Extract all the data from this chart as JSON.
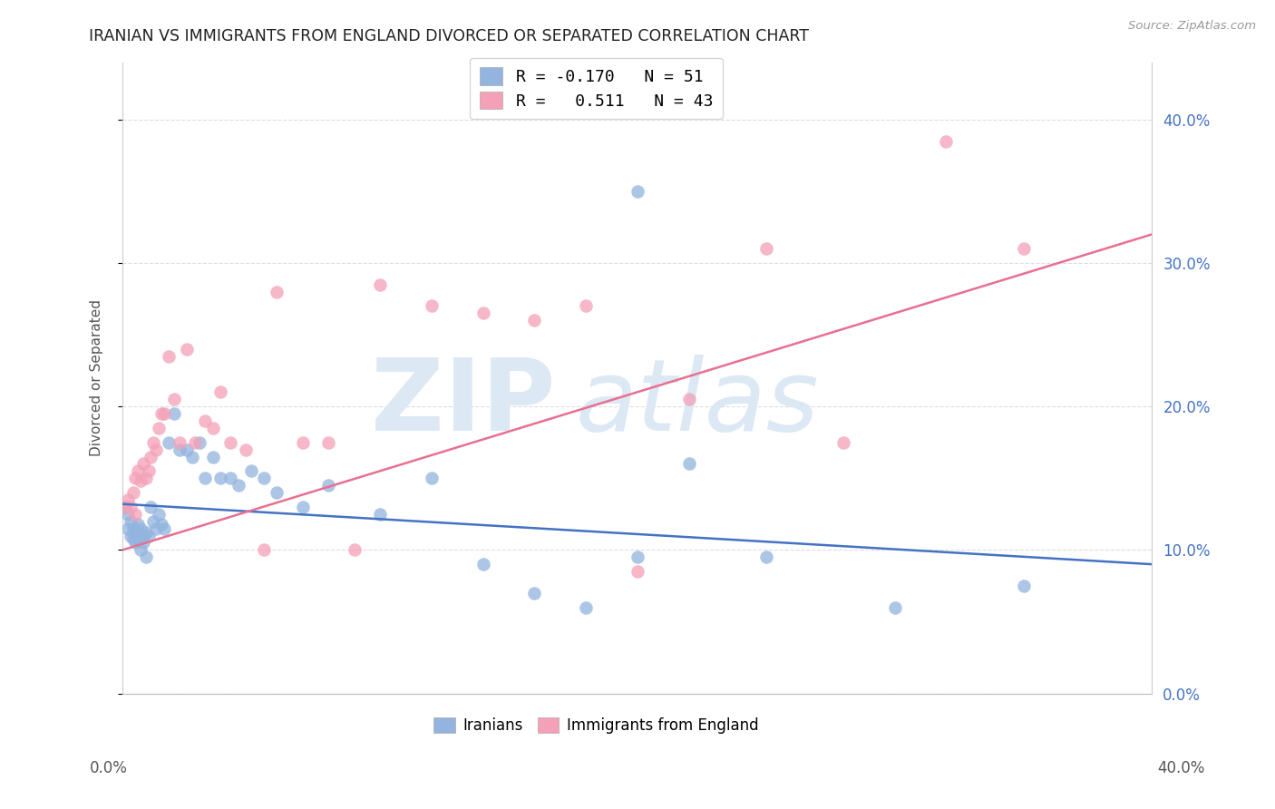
{
  "title": "IRANIAN VS IMMIGRANTS FROM ENGLAND DIVORCED OR SEPARATED CORRELATION CHART",
  "source": "Source: ZipAtlas.com",
  "ylabel": "Divorced or Separated",
  "legend_iranians": "Iranians",
  "legend_england": "Immigrants from England",
  "iranians_R": -0.17,
  "iranians_N": 51,
  "england_R": 0.511,
  "england_N": 43,
  "color_iranians": "#92b4de",
  "color_england": "#f4a0b8",
  "color_line_iranians": "#4472c4",
  "color_line_england": "#e87090",
  "xlim": [
    0.0,
    0.4
  ],
  "ylim": [
    0.0,
    0.44
  ],
  "yticks": [
    0.0,
    0.1,
    0.2,
    0.3,
    0.4
  ],
  "xticks": [
    0.0,
    0.05,
    0.1,
    0.15,
    0.2,
    0.25,
    0.3,
    0.35,
    0.4
  ],
  "iranians_x": [
    0.001,
    0.002,
    0.002,
    0.003,
    0.003,
    0.004,
    0.004,
    0.005,
    0.005,
    0.006,
    0.006,
    0.007,
    0.007,
    0.008,
    0.008,
    0.009,
    0.009,
    0.01,
    0.011,
    0.012,
    0.013,
    0.014,
    0.015,
    0.016,
    0.018,
    0.02,
    0.022,
    0.025,
    0.027,
    0.03,
    0.032,
    0.035,
    0.038,
    0.042,
    0.045,
    0.05,
    0.055,
    0.06,
    0.07,
    0.08,
    0.1,
    0.12,
    0.14,
    0.16,
    0.18,
    0.2,
    0.22,
    0.25,
    0.2,
    0.3,
    0.35
  ],
  "iranians_y": [
    0.13,
    0.125,
    0.115,
    0.12,
    0.11,
    0.115,
    0.108,
    0.112,
    0.105,
    0.118,
    0.108,
    0.115,
    0.1,
    0.11,
    0.105,
    0.112,
    0.095,
    0.11,
    0.13,
    0.12,
    0.115,
    0.125,
    0.118,
    0.115,
    0.175,
    0.195,
    0.17,
    0.17,
    0.165,
    0.175,
    0.15,
    0.165,
    0.15,
    0.15,
    0.145,
    0.155,
    0.15,
    0.14,
    0.13,
    0.145,
    0.125,
    0.15,
    0.09,
    0.07,
    0.06,
    0.35,
    0.16,
    0.095,
    0.095,
    0.06,
    0.075
  ],
  "england_x": [
    0.001,
    0.002,
    0.003,
    0.004,
    0.005,
    0.005,
    0.006,
    0.007,
    0.008,
    0.009,
    0.01,
    0.011,
    0.012,
    0.013,
    0.014,
    0.015,
    0.016,
    0.018,
    0.02,
    0.022,
    0.025,
    0.028,
    0.032,
    0.035,
    0.038,
    0.042,
    0.048,
    0.055,
    0.06,
    0.07,
    0.08,
    0.09,
    0.1,
    0.12,
    0.14,
    0.16,
    0.18,
    0.2,
    0.22,
    0.25,
    0.28,
    0.32,
    0.35
  ],
  "england_y": [
    0.13,
    0.135,
    0.13,
    0.14,
    0.125,
    0.15,
    0.155,
    0.148,
    0.16,
    0.15,
    0.155,
    0.165,
    0.175,
    0.17,
    0.185,
    0.195,
    0.195,
    0.235,
    0.205,
    0.175,
    0.24,
    0.175,
    0.19,
    0.185,
    0.21,
    0.175,
    0.17,
    0.1,
    0.28,
    0.175,
    0.175,
    0.1,
    0.285,
    0.27,
    0.265,
    0.26,
    0.27,
    0.085,
    0.205,
    0.31,
    0.175,
    0.385,
    0.31
  ],
  "line_iran_x0": 0.0,
  "line_iran_x1": 0.4,
  "line_iran_y0": 0.132,
  "line_iran_y1": 0.09,
  "line_eng_x0": 0.0,
  "line_eng_x1": 0.4,
  "line_eng_y0": 0.1,
  "line_eng_y1": 0.32
}
